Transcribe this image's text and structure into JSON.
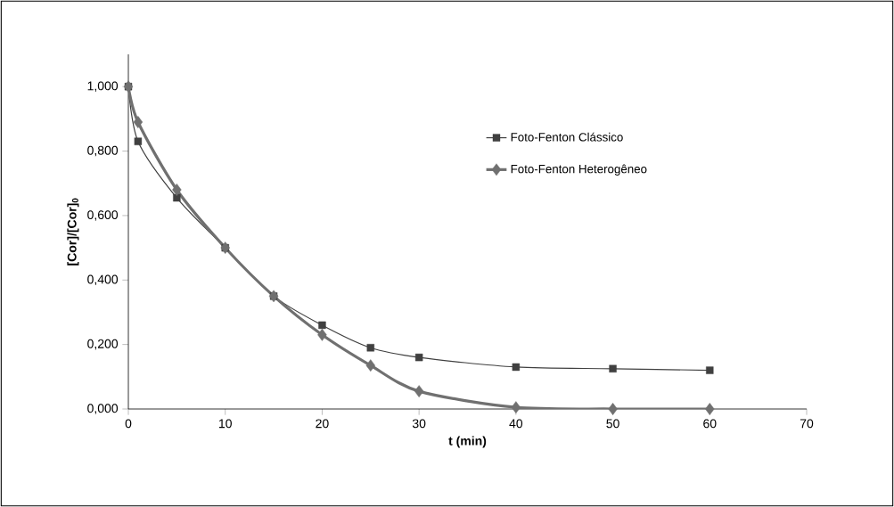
{
  "chart_data": {
    "type": "line",
    "xlabel": "t (min)",
    "ylabel": "[Cor]/[Cor]$_{0}$",
    "x": [
      0,
      1,
      5,
      10,
      15,
      20,
      25,
      30,
      40,
      50,
      60
    ],
    "series": [
      {
        "name": "Foto-Fenton Clássico",
        "color": "#404040",
        "marker": "square",
        "values": [
          1.0,
          0.83,
          0.655,
          0.5,
          0.35,
          0.26,
          0.19,
          0.16,
          0.13,
          0.125,
          0.12
        ]
      },
      {
        "name": "Foto-Fenton Heterogêneo",
        "color": "#707070",
        "marker": "diamond",
        "values": [
          1.0,
          0.89,
          0.68,
          0.5,
          0.35,
          0.23,
          0.135,
          0.055,
          0.005,
          0.0,
          0.0
        ]
      }
    ],
    "xlim": [
      0,
      70
    ],
    "ylim": [
      0,
      1.1
    ],
    "xticks": [
      0,
      10,
      20,
      30,
      40,
      50,
      60,
      70
    ],
    "yticks": [
      {
        "value": 0,
        "label": "0,000"
      },
      {
        "value": 0.2,
        "label": "0,200"
      },
      {
        "value": 0.4,
        "label": "0,400"
      },
      {
        "value": 0.6,
        "label": "0,600"
      },
      {
        "value": 0.8,
        "label": "0,800"
      },
      {
        "value": 1.0,
        "label": "1,000"
      }
    ],
    "grid": false,
    "legend": "right"
  }
}
